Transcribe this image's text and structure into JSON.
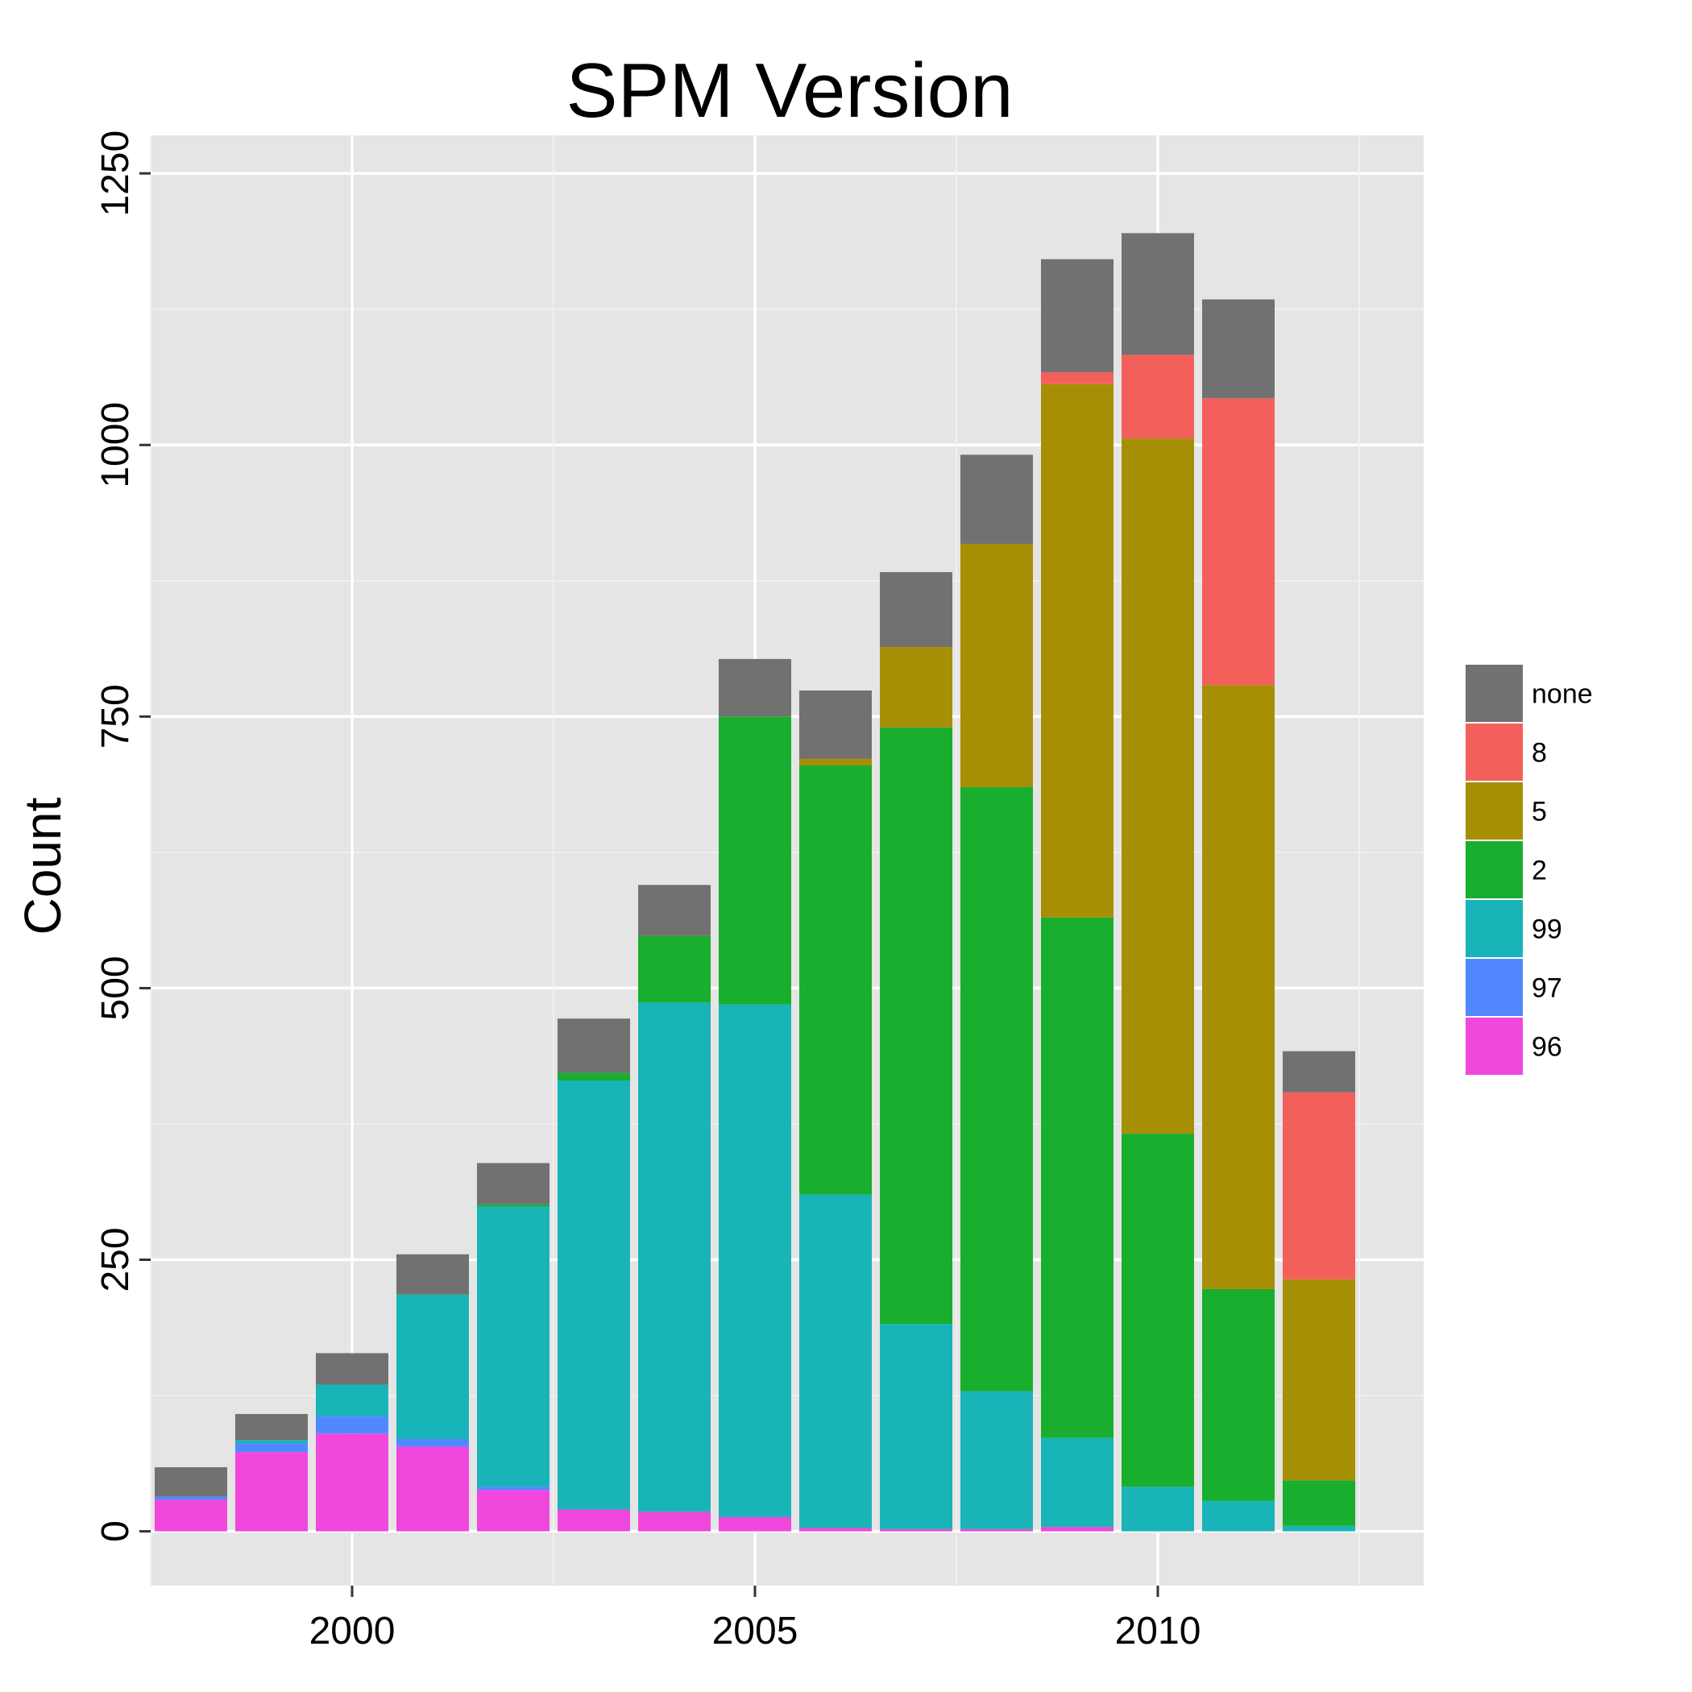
{
  "chart_data": {
    "type": "bar",
    "stacked": true,
    "title": "SPM Version",
    "xlabel": "",
    "ylabel": "Count",
    "xlim": [
      1997.5,
      2013.3
    ],
    "ylim": [
      -50,
      1285
    ],
    "x_ticks": [
      "2000",
      "2005",
      "2010"
    ],
    "y_ticks": [
      "0",
      "250",
      "500",
      "750",
      "1000",
      "1250"
    ],
    "grid": true,
    "legend_position": "right",
    "categories": [
      1998,
      1999,
      2000,
      2001,
      2002,
      2003,
      2004,
      2005,
      2006,
      2007,
      2008,
      2009,
      2010,
      2011,
      2012
    ],
    "series": [
      {
        "name": "96",
        "color": "#F047DD",
        "values": [
          29,
          73,
          90,
          78,
          38,
          20,
          18,
          13,
          3,
          2,
          2,
          4,
          0,
          0,
          0
        ]
      },
      {
        "name": "97",
        "color": "#5288FF",
        "values": [
          3,
          8,
          16,
          7,
          3,
          0,
          0,
          0,
          0,
          0,
          0,
          0,
          0,
          0,
          0
        ]
      },
      {
        "name": "99",
        "color": "#19B4B7",
        "values": [
          0,
          3,
          29,
          133,
          258,
          395,
          469,
          472,
          307,
          189,
          127,
          82,
          41,
          28,
          5
        ]
      },
      {
        "name": "2",
        "color": "#19AE2E",
        "values": [
          0,
          0,
          0,
          0,
          2,
          7,
          61,
          265,
          395,
          549,
          556,
          479,
          325,
          195,
          42
        ]
      },
      {
        "name": "5",
        "color": "#A68F05",
        "values": [
          0,
          0,
          0,
          0,
          0,
          0,
          0,
          0,
          6,
          74,
          224,
          491,
          640,
          556,
          185
        ]
      },
      {
        "name": "8",
        "color": "#F3605C",
        "values": [
          0,
          0,
          0,
          0,
          0,
          0,
          0,
          0,
          0,
          0,
          0,
          11,
          77,
          264,
          172
        ]
      },
      {
        "name": "none",
        "color": "#717171",
        "values": [
          27,
          24,
          29,
          37,
          38,
          50,
          47,
          53,
          63,
          69,
          82,
          104,
          112,
          91,
          38
        ]
      }
    ],
    "legend_order": [
      "none",
      "8",
      "5",
      "2",
      "99",
      "97",
      "96"
    ]
  }
}
